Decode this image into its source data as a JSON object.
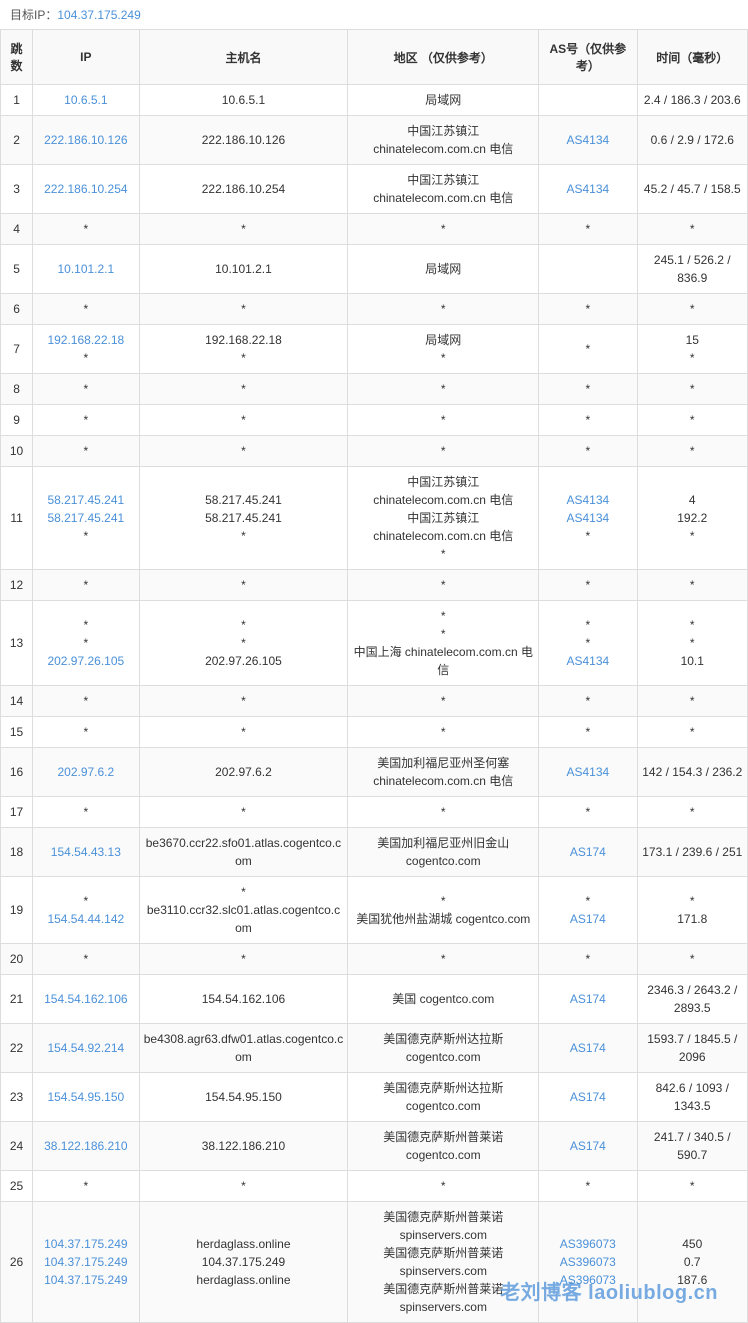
{
  "header": {
    "label": "目标IP：",
    "ip": "104.37.175.249"
  },
  "columns": {
    "hop": "跳数",
    "ip": "IP",
    "host": "主机名",
    "region": "地区 （仅供参考）",
    "as": "AS号（仅供参考）",
    "time": "时间（毫秒）"
  },
  "rows": [
    {
      "hop": "1",
      "ip": [
        "10.6.5.1"
      ],
      "ip_link": [
        true
      ],
      "host": [
        "10.6.5.1"
      ],
      "region": [
        "局域网"
      ],
      "as": [
        ""
      ],
      "as_link": [
        false
      ],
      "time": [
        "2.4 / 186.3 / 203.6"
      ]
    },
    {
      "hop": "2",
      "ip": [
        "222.186.10.126"
      ],
      "ip_link": [
        true
      ],
      "host": [
        "222.186.10.126"
      ],
      "region": [
        "中国江苏镇江 chinatelecom.com.cn 电信"
      ],
      "as": [
        "AS4134"
      ],
      "as_link": [
        true
      ],
      "time": [
        "0.6 / 2.9 / 172.6"
      ]
    },
    {
      "hop": "3",
      "ip": [
        "222.186.10.254"
      ],
      "ip_link": [
        true
      ],
      "host": [
        "222.186.10.254"
      ],
      "region": [
        "中国江苏镇江 chinatelecom.com.cn 电信"
      ],
      "as": [
        "AS4134"
      ],
      "as_link": [
        true
      ],
      "time": [
        "45.2 / 45.7 / 158.5"
      ]
    },
    {
      "hop": "4",
      "ip": [
        "*"
      ],
      "ip_link": [
        false
      ],
      "host": [
        "*"
      ],
      "region": [
        "*"
      ],
      "as": [
        "*"
      ],
      "as_link": [
        false
      ],
      "time": [
        "*"
      ]
    },
    {
      "hop": "5",
      "ip": [
        "10.101.2.1"
      ],
      "ip_link": [
        true
      ],
      "host": [
        "10.101.2.1"
      ],
      "region": [
        "局域网"
      ],
      "as": [
        ""
      ],
      "as_link": [
        false
      ],
      "time": [
        "245.1 / 526.2 / 836.9"
      ]
    },
    {
      "hop": "6",
      "ip": [
        "*"
      ],
      "ip_link": [
        false
      ],
      "host": [
        "*"
      ],
      "region": [
        "*"
      ],
      "as": [
        "*"
      ],
      "as_link": [
        false
      ],
      "time": [
        "*"
      ]
    },
    {
      "hop": "7",
      "ip": [
        "192.168.22.18",
        "*"
      ],
      "ip_link": [
        true,
        false
      ],
      "host": [
        "192.168.22.18",
        "*"
      ],
      "region": [
        "局域网",
        "*"
      ],
      "as": [
        "",
        "*"
      ],
      "as_link": [
        false,
        false
      ],
      "time": [
        "15",
        "*"
      ]
    },
    {
      "hop": "8",
      "ip": [
        "*"
      ],
      "ip_link": [
        false
      ],
      "host": [
        "*"
      ],
      "region": [
        "*"
      ],
      "as": [
        "*"
      ],
      "as_link": [
        false
      ],
      "time": [
        "*"
      ]
    },
    {
      "hop": "9",
      "ip": [
        "*"
      ],
      "ip_link": [
        false
      ],
      "host": [
        "*"
      ],
      "region": [
        "*"
      ],
      "as": [
        "*"
      ],
      "as_link": [
        false
      ],
      "time": [
        "*"
      ]
    },
    {
      "hop": "10",
      "ip": [
        "*"
      ],
      "ip_link": [
        false
      ],
      "host": [
        "*"
      ],
      "region": [
        "*"
      ],
      "as": [
        "*"
      ],
      "as_link": [
        false
      ],
      "time": [
        "*"
      ]
    },
    {
      "hop": "11",
      "ip": [
        "58.217.45.241",
        "58.217.45.241",
        "*"
      ],
      "ip_link": [
        true,
        true,
        false
      ],
      "host": [
        "58.217.45.241",
        "58.217.45.241",
        "*"
      ],
      "region": [
        "中国江苏镇江 chinatelecom.com.cn 电信",
        "中国江苏镇江 chinatelecom.com.cn 电信",
        "*"
      ],
      "as": [
        "AS4134",
        "AS4134",
        "*"
      ],
      "as_link": [
        true,
        true,
        false
      ],
      "time": [
        "4",
        "192.2",
        "*"
      ]
    },
    {
      "hop": "12",
      "ip": [
        "*"
      ],
      "ip_link": [
        false
      ],
      "host": [
        "*"
      ],
      "region": [
        "*"
      ],
      "as": [
        "*"
      ],
      "as_link": [
        false
      ],
      "time": [
        "*"
      ]
    },
    {
      "hop": "13",
      "ip": [
        "*",
        "*",
        "202.97.26.105"
      ],
      "ip_link": [
        false,
        false,
        true
      ],
      "host": [
        "*",
        "*",
        "202.97.26.105"
      ],
      "region": [
        "*",
        "*",
        "中国上海 chinatelecom.com.cn 电信"
      ],
      "as": [
        "*",
        "*",
        "AS4134"
      ],
      "as_link": [
        false,
        false,
        true
      ],
      "time": [
        "*",
        "*",
        "10.1"
      ]
    },
    {
      "hop": "14",
      "ip": [
        "*"
      ],
      "ip_link": [
        false
      ],
      "host": [
        "*"
      ],
      "region": [
        "*"
      ],
      "as": [
        "*"
      ],
      "as_link": [
        false
      ],
      "time": [
        "*"
      ]
    },
    {
      "hop": "15",
      "ip": [
        "*"
      ],
      "ip_link": [
        false
      ],
      "host": [
        "*"
      ],
      "region": [
        "*"
      ],
      "as": [
        "*"
      ],
      "as_link": [
        false
      ],
      "time": [
        "*"
      ]
    },
    {
      "hop": "16",
      "ip": [
        "202.97.6.2"
      ],
      "ip_link": [
        true
      ],
      "host": [
        "202.97.6.2"
      ],
      "region": [
        "美国加利福尼亚州圣何塞 chinatelecom.com.cn 电信"
      ],
      "as": [
        "AS4134"
      ],
      "as_link": [
        true
      ],
      "time": [
        "142 / 154.3 / 236.2"
      ]
    },
    {
      "hop": "17",
      "ip": [
        "*"
      ],
      "ip_link": [
        false
      ],
      "host": [
        "*"
      ],
      "region": [
        "*"
      ],
      "as": [
        "*"
      ],
      "as_link": [
        false
      ],
      "time": [
        "*"
      ]
    },
    {
      "hop": "18",
      "ip": [
        "154.54.43.13"
      ],
      "ip_link": [
        true
      ],
      "host": [
        "be3670.ccr22.sfo01.atlas.cogentco.com"
      ],
      "region": [
        "美国加利福尼亚州旧金山 cogentco.com"
      ],
      "as": [
        "AS174"
      ],
      "as_link": [
        true
      ],
      "time": [
        "173.1 / 239.6 / 251"
      ]
    },
    {
      "hop": "19",
      "ip": [
        "*",
        "154.54.44.142"
      ],
      "ip_link": [
        false,
        true
      ],
      "host": [
        "*",
        "be3110.ccr32.slc01.atlas.cogentco.com"
      ],
      "region": [
        "*",
        "美国犹他州盐湖城 cogentco.com"
      ],
      "as": [
        "*",
        "AS174"
      ],
      "as_link": [
        false,
        true
      ],
      "time": [
        "*",
        "171.8"
      ]
    },
    {
      "hop": "20",
      "ip": [
        "*"
      ],
      "ip_link": [
        false
      ],
      "host": [
        "*"
      ],
      "region": [
        "*"
      ],
      "as": [
        "*"
      ],
      "as_link": [
        false
      ],
      "time": [
        "*"
      ]
    },
    {
      "hop": "21",
      "ip": [
        "154.54.162.106"
      ],
      "ip_link": [
        true
      ],
      "host": [
        "154.54.162.106"
      ],
      "region": [
        "美国 cogentco.com"
      ],
      "as": [
        "AS174"
      ],
      "as_link": [
        true
      ],
      "time": [
        "2346.3 / 2643.2 / 2893.5"
      ]
    },
    {
      "hop": "22",
      "ip": [
        "154.54.92.214"
      ],
      "ip_link": [
        true
      ],
      "host": [
        "be4308.agr63.dfw01.atlas.cogentco.com"
      ],
      "region": [
        "美国德克萨斯州达拉斯 cogentco.com"
      ],
      "as": [
        "AS174"
      ],
      "as_link": [
        true
      ],
      "time": [
        "1593.7 / 1845.5 / 2096"
      ]
    },
    {
      "hop": "23",
      "ip": [
        "154.54.95.150"
      ],
      "ip_link": [
        true
      ],
      "host": [
        "154.54.95.150"
      ],
      "region": [
        "美国德克萨斯州达拉斯 cogentco.com"
      ],
      "as": [
        "AS174"
      ],
      "as_link": [
        true
      ],
      "time": [
        "842.6 / 1093 / 1343.5"
      ]
    },
    {
      "hop": "24",
      "ip": [
        "38.122.186.210"
      ],
      "ip_link": [
        true
      ],
      "host": [
        "38.122.186.210"
      ],
      "region": [
        "美国德克萨斯州普莱诺 cogentco.com"
      ],
      "as": [
        "AS174"
      ],
      "as_link": [
        true
      ],
      "time": [
        "241.7 / 340.5 / 590.7"
      ]
    },
    {
      "hop": "25",
      "ip": [
        "*"
      ],
      "ip_link": [
        false
      ],
      "host": [
        "*"
      ],
      "region": [
        "*"
      ],
      "as": [
        "*"
      ],
      "as_link": [
        false
      ],
      "time": [
        "*"
      ]
    },
    {
      "hop": "26",
      "ip": [
        "104.37.175.249",
        "104.37.175.249",
        "104.37.175.249"
      ],
      "ip_link": [
        true,
        true,
        true
      ],
      "host": [
        "herdaglass.online",
        "104.37.175.249",
        "herdaglass.online"
      ],
      "region": [
        "美国德克萨斯州普莱诺 spinservers.com",
        "美国德克萨斯州普莱诺 spinservers.com",
        "美国德克萨斯州普莱诺 spinservers.com"
      ],
      "as": [
        "AS396073",
        "AS396073",
        "AS396073"
      ],
      "as_link": [
        true,
        true,
        true
      ],
      "time": [
        "450",
        "0.7",
        "187.6"
      ]
    }
  ],
  "watermark": "老刘博客 laoliublog.cn",
  "style": {
    "link_color": "#4a90d9",
    "border_color": "#ddd",
    "header_bg": "#f9f9f9",
    "row_even_bg": "#fafafa",
    "row_odd_bg": "#ffffff",
    "font_size": 12
  }
}
